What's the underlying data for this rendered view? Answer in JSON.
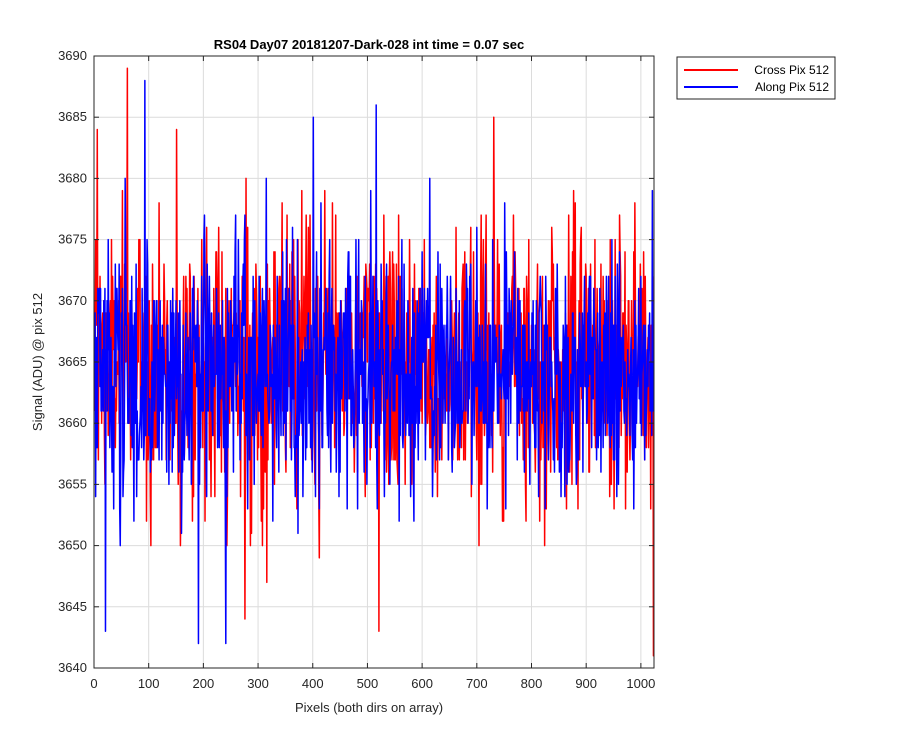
{
  "chart_data": {
    "type": "line",
    "title": "RS04 Day07 20181207-Dark-028 int time = 0.07 sec",
    "xlabel": "Pixels (both dirs on array)",
    "ylabel": "Signal (ADU) @ pix 512",
    "xlim": [
      0,
      1024
    ],
    "ylim": [
      3640,
      3690
    ],
    "xticks": [
      0,
      100,
      200,
      300,
      400,
      500,
      600,
      700,
      800,
      900,
      1000
    ],
    "yticks": [
      3640,
      3645,
      3650,
      3655,
      3660,
      3665,
      3670,
      3675,
      3680,
      3685,
      3690
    ],
    "grid": true,
    "legend_position": "outside-top-right",
    "series": [
      {
        "name": "Cross Pix 512",
        "color": "#ff0000",
        "mean": 3665,
        "min": 3641,
        "max": 3689,
        "noise_sd": 5.6,
        "n_points": 1024,
        "peaks": [
          [
            60,
            3689
          ],
          [
            150,
            3684
          ],
          [
            730,
            3685
          ],
          [
            5,
            3684
          ],
          [
            1022,
            3641
          ],
          [
            520,
            3643
          ],
          [
            275,
            3644
          ]
        ]
      },
      {
        "name": "Along Pix 512",
        "color": "#0000ff",
        "mean": 3664,
        "min": 3642,
        "max": 3688,
        "noise_sd": 5.3,
        "n_points": 1024,
        "peaks": [
          [
            92,
            3688
          ],
          [
            515,
            3686
          ],
          [
            400,
            3685
          ],
          [
            20,
            3643
          ],
          [
            190,
            3642
          ],
          [
            240,
            3642
          ],
          [
            1020,
            3679
          ]
        ]
      }
    ]
  }
}
